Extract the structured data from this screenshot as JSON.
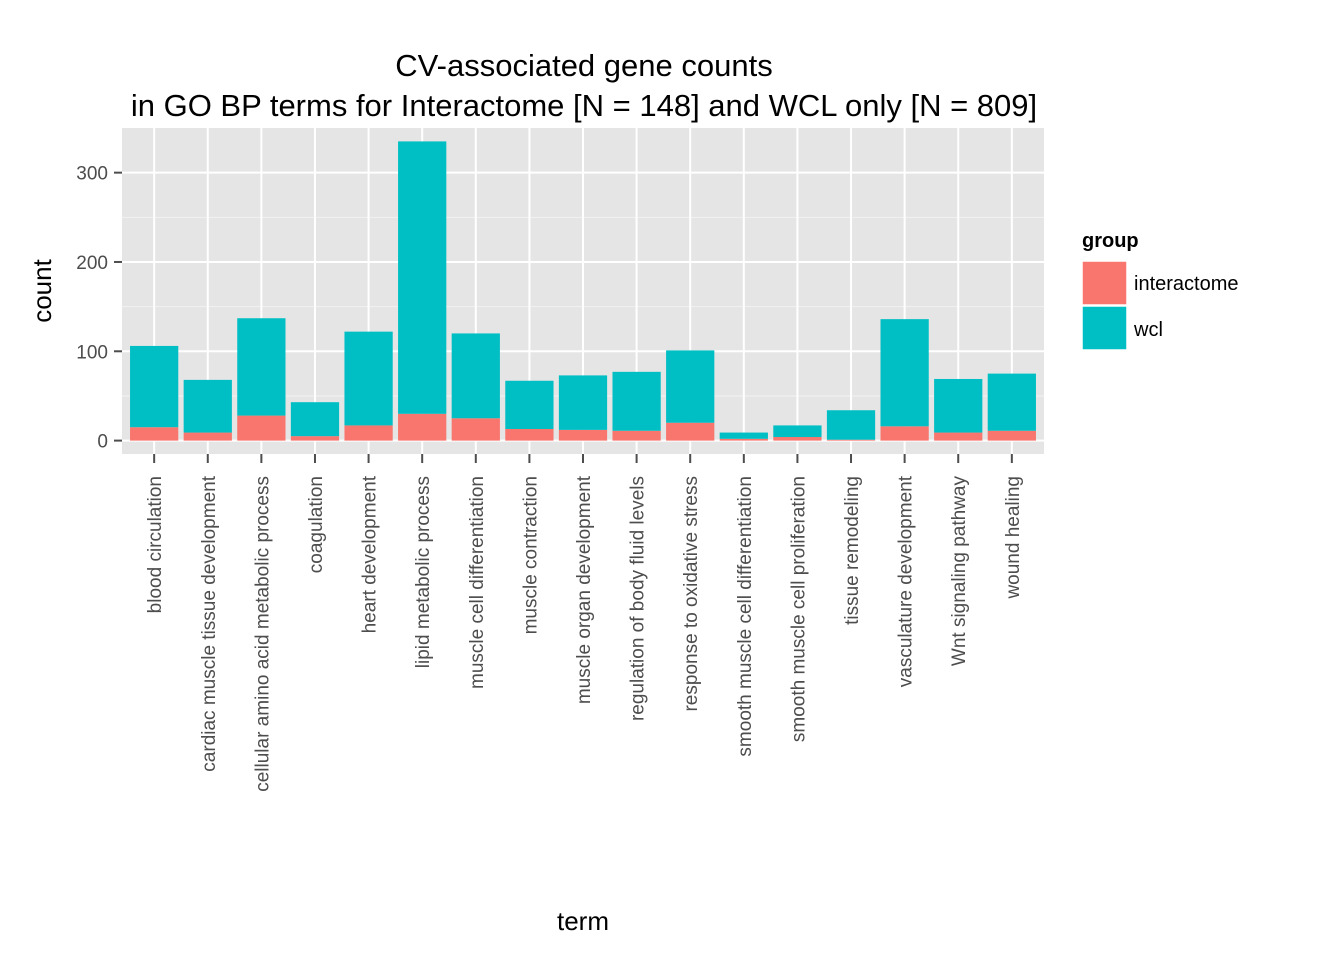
{
  "chart_data": {
    "type": "bar",
    "stacked": true,
    "title": "CV-associated gene counts",
    "subtitle": "in GO BP terms for Interactome [N = 148] and WCL only [N = 809]",
    "xlabel": "term",
    "ylabel": "count",
    "ylim": [
      -15,
      350
    ],
    "yticks": [
      0,
      100,
      200,
      300
    ],
    "grid": true,
    "legend_position": "right",
    "legend_title": "group",
    "categories": [
      "blood circulation",
      "cardiac muscle tissue development",
      "cellular amino acid metabolic process",
      "coagulation",
      "heart development",
      "lipid metabolic process",
      "muscle cell differentiation",
      "muscle contraction",
      "muscle organ development",
      "regulation of body fluid levels",
      "response to oxidative stress",
      "smooth muscle cell differentiation",
      "smooth muscle cell proliferation",
      "tissue remodeling",
      "vasculature development",
      "Wnt signaling pathway",
      "wound healing"
    ],
    "series": [
      {
        "name": "interactome",
        "color": "#F8766D",
        "values": [
          15,
          9,
          28,
          5,
          17,
          30,
          25,
          13,
          12,
          11,
          20,
          2,
          4,
          1,
          16,
          9,
          11
        ]
      },
      {
        "name": "wcl",
        "color": "#00BFC4",
        "values": [
          91,
          59,
          109,
          38,
          105,
          305,
          95,
          54,
          61,
          66,
          81,
          7,
          13,
          33,
          120,
          60,
          64
        ]
      }
    ]
  }
}
